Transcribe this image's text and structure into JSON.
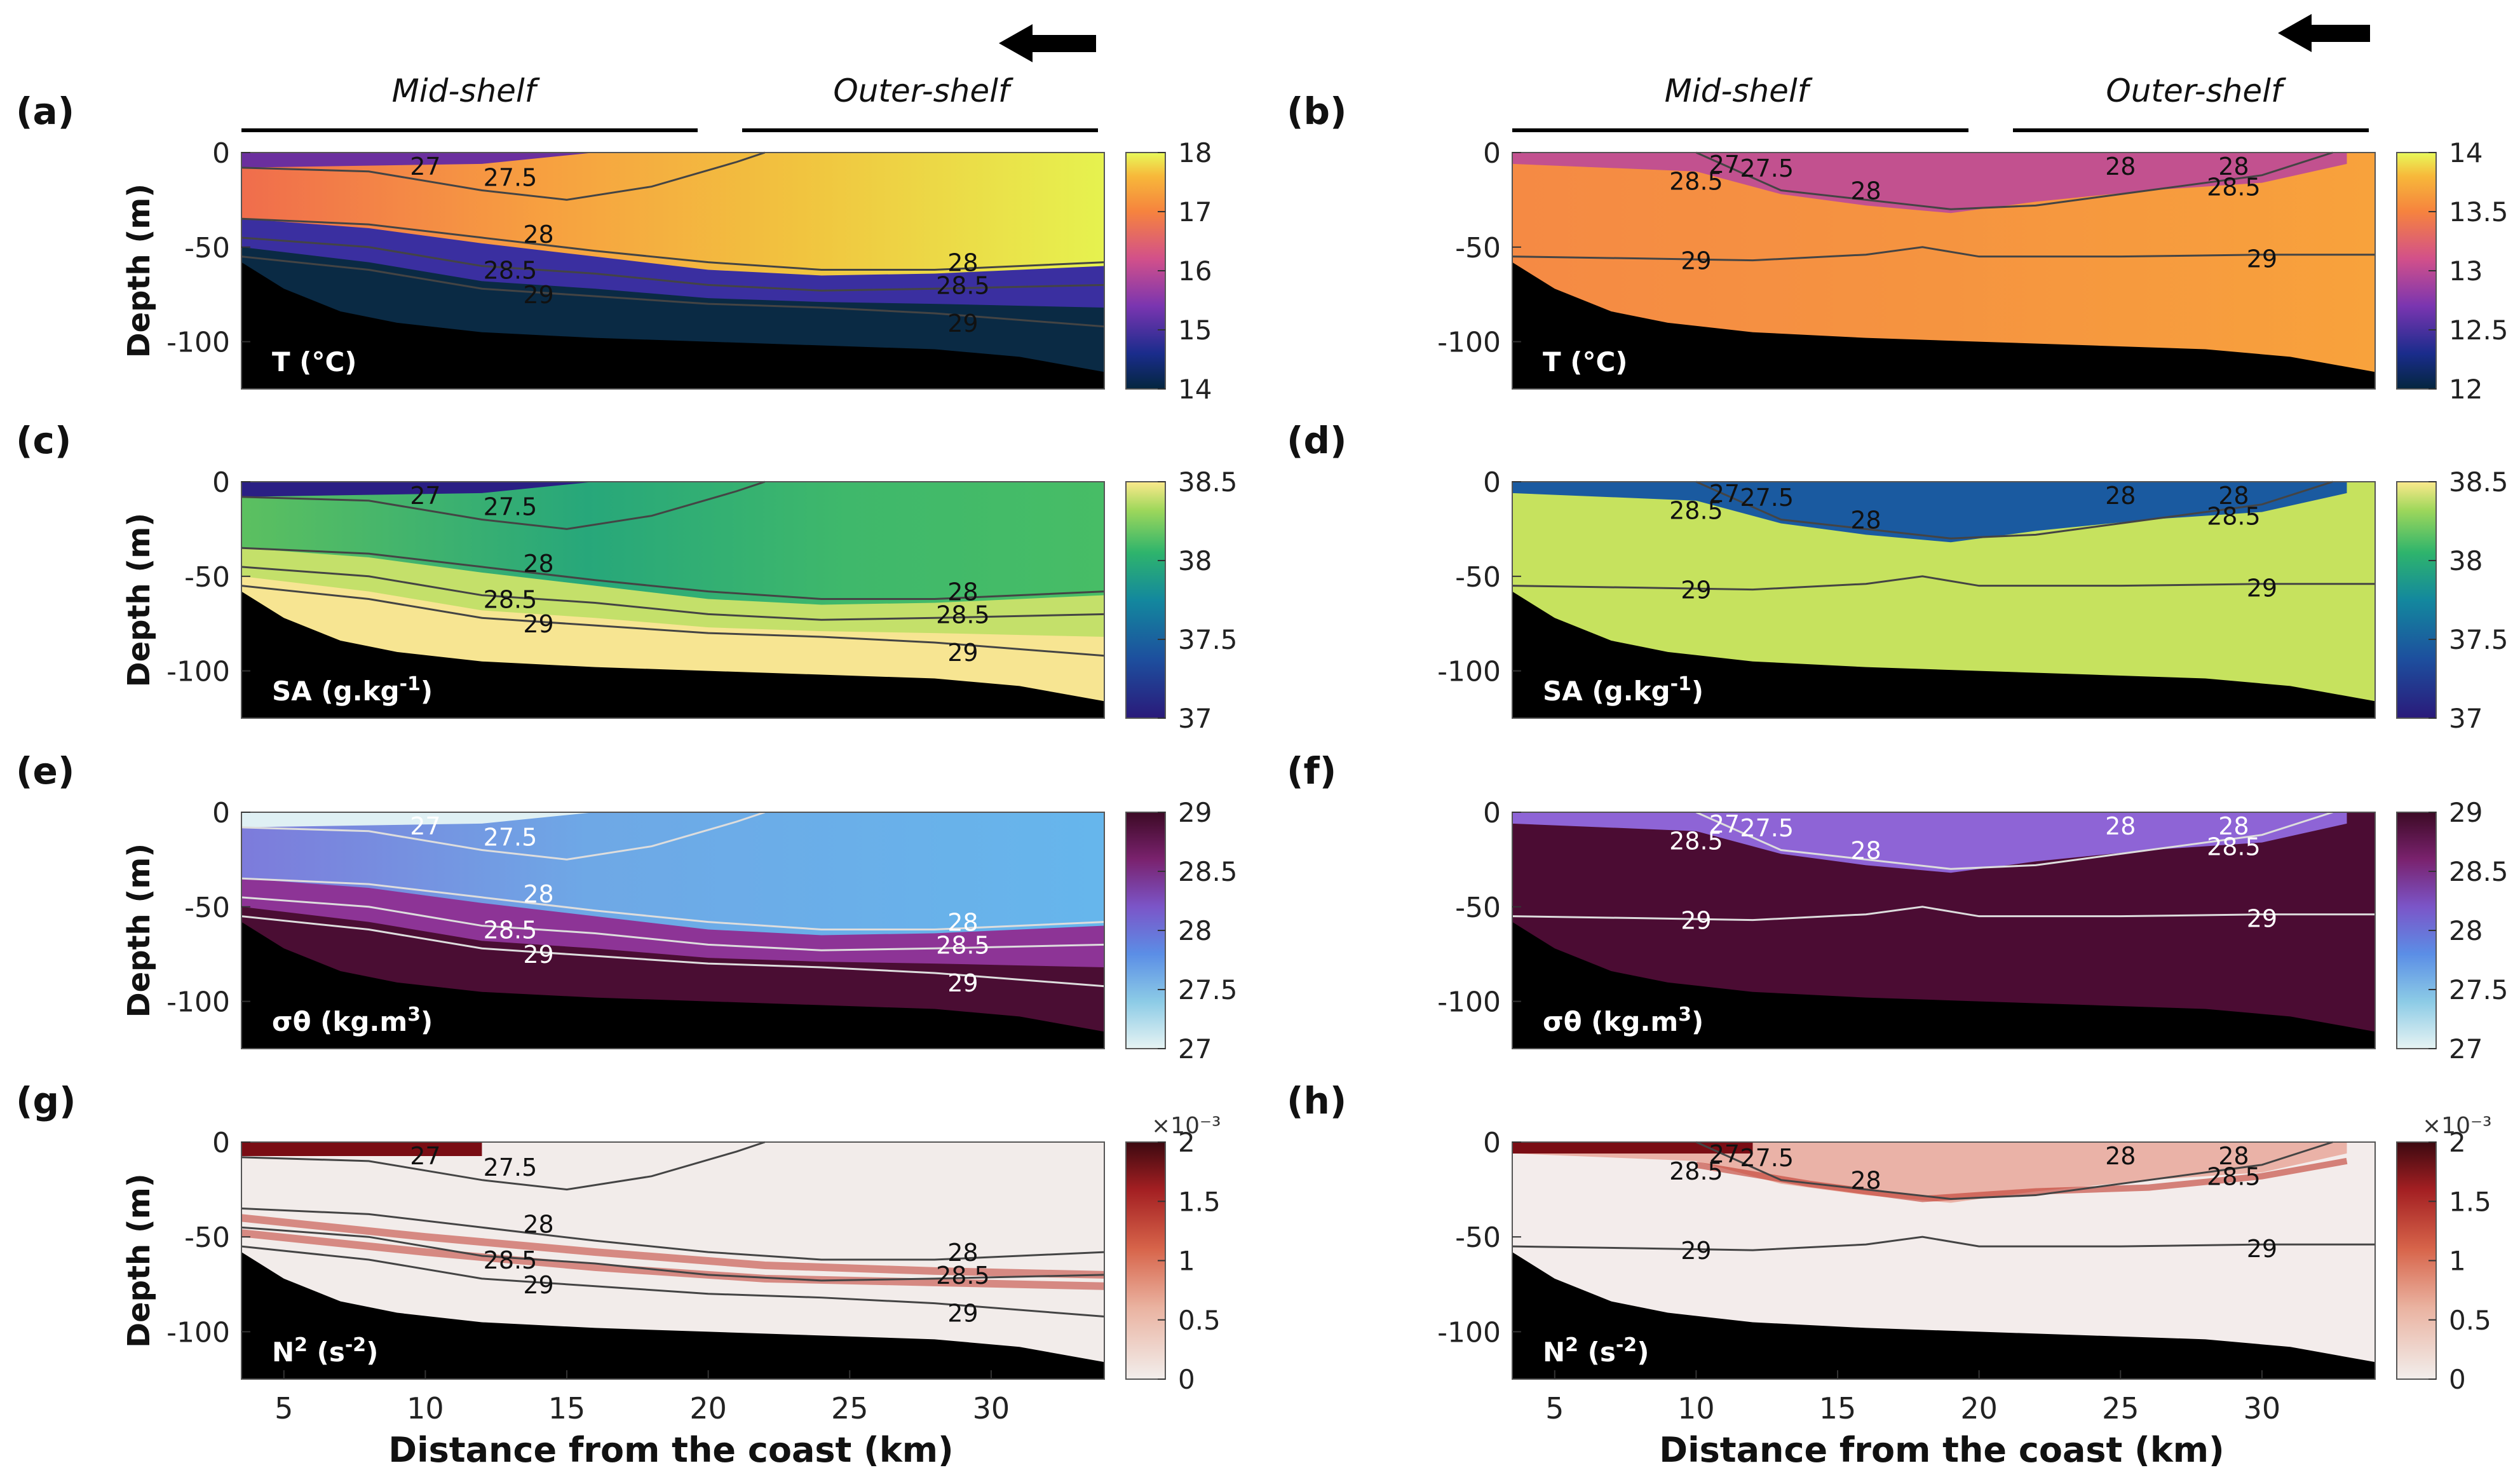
{
  "figure": {
    "regions": {
      "mid": "Mid-shelf",
      "outer": "Outer-shelf"
    },
    "xlabel": "Distance from the coast (km)",
    "ylabel": "Depth (m)"
  },
  "chart_data": [
    {
      "id": "a",
      "label": "(a)",
      "type": "heatmap",
      "variable": "T",
      "var_main": "T (°C)",
      "var_sup": "",
      "var_tail": "",
      "xlim": [
        3.5,
        34
      ],
      "ylim": [
        -125,
        0
      ],
      "xticks": [
        5,
        10,
        15,
        20,
        25,
        30
      ],
      "yticks": [
        0,
        -50,
        -100
      ],
      "colorbar": {
        "min": 14,
        "max": 18,
        "ticks": [
          "18",
          "17",
          "16",
          "15",
          "14"
        ],
        "exponent": ""
      },
      "contour_labels": [
        "27",
        "27.5",
        "28",
        "28.5",
        "29",
        "28",
        "28.5",
        "29"
      ],
      "contours": [
        {
          "level": "27",
          "depths": [
            [
              3.5,
              -3
            ],
            [
              10,
              -6
            ],
            [
              14,
              -4
            ],
            [
              16,
              0
            ]
          ]
        },
        {
          "level": "27.5",
          "depths": [
            [
              3.5,
              -8
            ],
            [
              8,
              -10
            ],
            [
              12,
              -20
            ],
            [
              15,
              -25
            ],
            [
              18,
              -18
            ],
            [
              21,
              -5
            ],
            [
              22,
              0
            ]
          ]
        },
        {
          "level": "28",
          "depths": [
            [
              3.5,
              -35
            ],
            [
              8,
              -38
            ],
            [
              12,
              -45
            ],
            [
              16,
              -52
            ],
            [
              20,
              -58
            ],
            [
              24,
              -62
            ],
            [
              28,
              -62
            ],
            [
              34,
              -58
            ]
          ]
        },
        {
          "level": "28.5",
          "depths": [
            [
              3.5,
              -45
            ],
            [
              8,
              -50
            ],
            [
              12,
              -60
            ],
            [
              16,
              -64
            ],
            [
              20,
              -70
            ],
            [
              24,
              -73
            ],
            [
              28,
              -72
            ],
            [
              34,
              -70
            ]
          ]
        },
        {
          "level": "29",
          "depths": [
            [
              3.5,
              -55
            ],
            [
              8,
              -62
            ],
            [
              12,
              -72
            ],
            [
              16,
              -76
            ],
            [
              20,
              -80
            ],
            [
              24,
              -82
            ],
            [
              28,
              -85
            ],
            [
              34,
              -92
            ]
          ]
        }
      ]
    },
    {
      "id": "b",
      "label": "(b)",
      "type": "heatmap",
      "variable": "T",
      "var_main": "T (°C)",
      "var_sup": "",
      "var_tail": "",
      "xlim": [
        3.5,
        34
      ],
      "ylim": [
        -125,
        0
      ],
      "xticks": [
        5,
        10,
        15,
        20,
        25,
        30
      ],
      "yticks": [
        0,
        -50,
        -100
      ],
      "colorbar": {
        "min": 12,
        "max": 14,
        "ticks": [
          "14",
          "13.5",
          "13",
          "12.5",
          "12"
        ],
        "exponent": ""
      },
      "contour_labels": [
        "27",
        "27.5",
        "28.5",
        "28",
        "29",
        "28",
        "28",
        "28.5",
        "29"
      ],
      "contours": [
        {
          "level": "27",
          "depths": [
            [
              3.5,
              -2
            ],
            [
              8,
              -4
            ],
            [
              11,
              -5
            ],
            [
              12,
              0
            ]
          ]
        },
        {
          "level": "27.5",
          "depths": [
            [
              3.5,
              -3
            ],
            [
              10,
              -6
            ],
            [
              13,
              -8
            ],
            [
              14,
              0
            ]
          ]
        },
        {
          "level": "28",
          "depths": [
            [
              10,
              0
            ],
            [
              13,
              -20
            ],
            [
              16,
              -25
            ],
            [
              19,
              -30
            ],
            [
              22,
              -28
            ],
            [
              26,
              -20
            ],
            [
              30,
              -12
            ],
            [
              32,
              -5
            ],
            [
              32.5,
              0
            ]
          ]
        },
        {
          "level": "28.5",
          "depths": [
            [
              3.5,
              -8
            ],
            [
              8,
              -12
            ],
            [
              12,
              -20
            ],
            [
              16,
              -28
            ],
            [
              20,
              -30
            ],
            [
              24,
              -22
            ],
            [
              28,
              -18
            ],
            [
              33,
              -5
            ]
          ]
        },
        {
          "level": "29",
          "depths": [
            [
              3.5,
              -55
            ],
            [
              8,
              -56
            ],
            [
              12,
              -57
            ],
            [
              16,
              -54
            ],
            [
              18,
              -50
            ],
            [
              20,
              -55
            ],
            [
              25,
              -55
            ],
            [
              30,
              -54
            ],
            [
              34,
              -54
            ]
          ]
        }
      ]
    },
    {
      "id": "c",
      "label": "(c)",
      "type": "heatmap",
      "variable": "SA",
      "var_main": "SA (g.kg",
      "var_sup": "-1",
      "var_tail": ")",
      "xlim": [
        3.5,
        34
      ],
      "ylim": [
        -125,
        0
      ],
      "xticks": [
        5,
        10,
        15,
        20,
        25,
        30
      ],
      "yticks": [
        0,
        -50,
        -100
      ],
      "colorbar": {
        "min": 37,
        "max": 38.5,
        "ticks": [
          "38.5",
          "38",
          "37.5",
          "37"
        ],
        "exponent": ""
      },
      "contour_labels": [
        "27",
        "27.5",
        "28",
        "28.5",
        "29",
        "28",
        "28.5",
        "29"
      ],
      "contours": []
    },
    {
      "id": "d",
      "label": "(d)",
      "type": "heatmap",
      "variable": "SA",
      "var_main": "SA (g.kg",
      "var_sup": "-1",
      "var_tail": ")",
      "xlim": [
        3.5,
        34
      ],
      "ylim": [
        -125,
        0
      ],
      "xticks": [
        5,
        10,
        15,
        20,
        25,
        30
      ],
      "yticks": [
        0,
        -50,
        -100
      ],
      "colorbar": {
        "min": 37,
        "max": 38.5,
        "ticks": [
          "38.5",
          "38",
          "37.5",
          "37"
        ],
        "exponent": ""
      },
      "contour_labels": [
        "27",
        "27.5",
        "28.5",
        "28",
        "29",
        "28",
        "28",
        "28.5",
        "29"
      ],
      "contours": []
    },
    {
      "id": "e",
      "label": "(e)",
      "type": "heatmap",
      "variable": "sigma-theta",
      "var_main": "σθ (kg.m",
      "var_sup": "3",
      "var_tail": ")",
      "xlim": [
        3.5,
        34
      ],
      "ylim": [
        -125,
        0
      ],
      "xticks": [
        5,
        10,
        15,
        20,
        25,
        30
      ],
      "yticks": [
        0,
        -50,
        -100
      ],
      "colorbar": {
        "min": 27,
        "max": 29,
        "ticks": [
          "29",
          "28.5",
          "28",
          "27.5",
          "27"
        ],
        "exponent": ""
      },
      "contour_labels": [
        "27",
        "27.5",
        "28",
        "28.5",
        "29",
        "28",
        "28.5",
        "29"
      ],
      "contours": []
    },
    {
      "id": "f",
      "label": "(f)",
      "type": "heatmap",
      "variable": "sigma-theta",
      "var_main": "σθ (kg.m",
      "var_sup": "3",
      "var_tail": ")",
      "xlim": [
        3.5,
        34
      ],
      "ylim": [
        -125,
        0
      ],
      "xticks": [
        5,
        10,
        15,
        20,
        25,
        30
      ],
      "yticks": [
        0,
        -50,
        -100
      ],
      "colorbar": {
        "min": 27,
        "max": 29,
        "ticks": [
          "29",
          "28.5",
          "28",
          "27.5",
          "27"
        ],
        "exponent": ""
      },
      "contour_labels": [
        "27",
        "27.5",
        "28.5",
        "28",
        "29",
        "28",
        "28",
        "28.5",
        "29"
      ],
      "contours": []
    },
    {
      "id": "g",
      "label": "(g)",
      "type": "heatmap",
      "variable": "N2",
      "var_main": "N",
      "var_sup": "2",
      "var_tail": " (s",
      "var_sup2": "-2",
      "var_tail2": ")",
      "xlim": [
        3.5,
        34
      ],
      "ylim": [
        -125,
        0
      ],
      "xticks": [
        5,
        10,
        15,
        20,
        25,
        30
      ],
      "yticks": [
        0,
        -50,
        -100
      ],
      "colorbar": {
        "min": 0,
        "max": 2,
        "ticks": [
          "2",
          "1.5",
          "1",
          "0.5",
          "0"
        ],
        "exponent": "×10⁻³"
      },
      "contour_labels": [
        "27",
        "27.5",
        "28",
        "28.5",
        "29",
        "28",
        "28.5",
        "29"
      ],
      "contours": []
    },
    {
      "id": "h",
      "label": "(h)",
      "type": "heatmap",
      "variable": "N2",
      "var_main": "N",
      "var_sup": "2",
      "var_tail": " (s",
      "var_sup2": "-2",
      "var_tail2": ")",
      "xlim": [
        3.5,
        34
      ],
      "ylim": [
        -125,
        0
      ],
      "xticks": [
        5,
        10,
        15,
        20,
        25,
        30
      ],
      "yticks": [
        0,
        -50,
        -100
      ],
      "colorbar": {
        "min": 0,
        "max": 2,
        "ticks": [
          "2",
          "1.5",
          "1",
          "0.5",
          "0"
        ],
        "exponent": "×10⁻³"
      },
      "contour_labels": [
        "27",
        "27.5",
        "28.5",
        "28",
        "29",
        "28",
        "28",
        "28.5",
        "29"
      ],
      "contours": []
    }
  ],
  "ytick_labels": [
    "0",
    "-50",
    "-100"
  ],
  "xtick_labels": [
    "5",
    "10",
    "15",
    "20",
    "25",
    "30"
  ],
  "colors": {
    "land": "#000000",
    "contour_dark": "#444444",
    "contour_light": "#dddddd"
  }
}
